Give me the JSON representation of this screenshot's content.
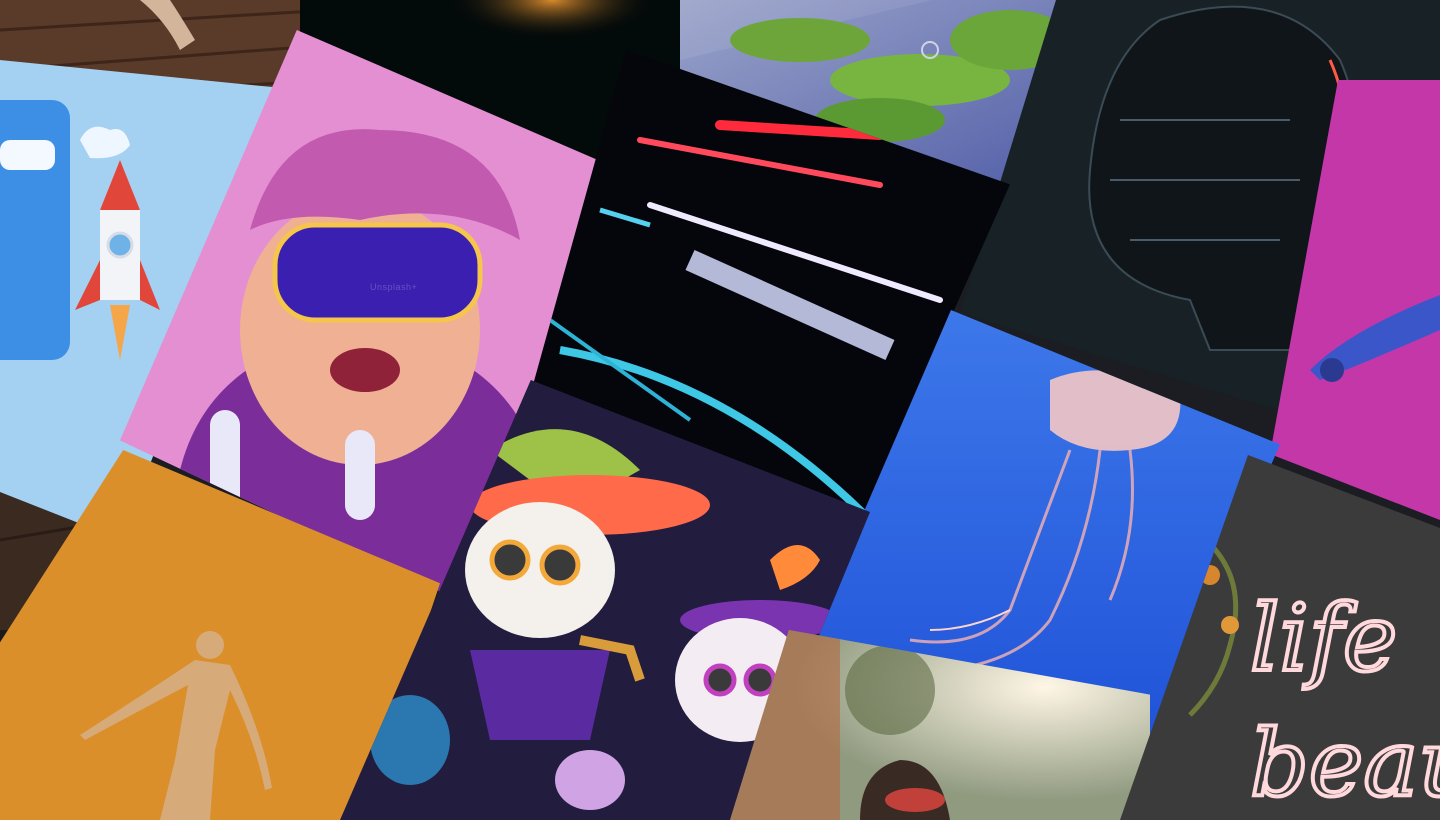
{
  "collage": {
    "background": "#1b1d22",
    "watermark": "Unsplash+",
    "neon_sign": {
      "line1": "life",
      "line2": "beaut"
    },
    "tiles": [
      {
        "id": "wood-top",
        "subject": "wood-surface",
        "bg": "#5a3a28"
      },
      {
        "id": "dark-glow",
        "subject": "dark-bokeh",
        "bg": "#030a0a"
      },
      {
        "id": "moss-garden",
        "subject": "moss-islands",
        "bg": "#7f88c4"
      },
      {
        "id": "cyber-head",
        "subject": "circuit-head",
        "bg": "#172126"
      },
      {
        "id": "magenta-robot",
        "subject": "robot-arm",
        "bg": "#c437a8"
      },
      {
        "id": "rocket-phone",
        "subject": "rocket-launch",
        "bg": "#a4d0f2"
      },
      {
        "id": "vr-avatar",
        "subject": "vr-character",
        "bg": "#e48fd2"
      },
      {
        "id": "neon-streaks",
        "subject": "light-streaks",
        "bg": "#05060c"
      },
      {
        "id": "jellyfish",
        "subject": "jellyfish",
        "bg": "#2a62e0"
      },
      {
        "id": "orange-figure",
        "subject": "sculpted-figure",
        "bg": "#d9891e"
      },
      {
        "id": "day-of-dead",
        "subject": "skeleton-mariachi",
        "bg": "#221c3e"
      },
      {
        "id": "woman-sunglasses",
        "subject": "portrait",
        "bg": "#c9c6be"
      },
      {
        "id": "neon-sign",
        "subject": "neon-sign",
        "bg": "#3b3b3b"
      },
      {
        "id": "wood-left",
        "subject": "wood-surface",
        "bg": "#3b2a20"
      }
    ]
  }
}
